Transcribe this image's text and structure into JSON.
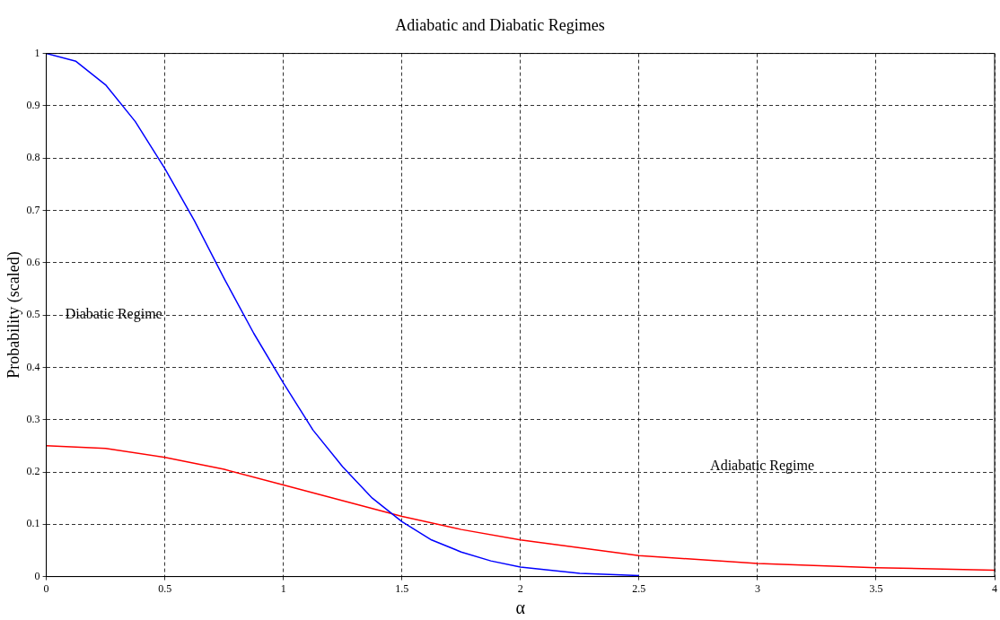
{
  "chart_data": {
    "type": "line",
    "title": "Adiabatic and Diabatic Regimes",
    "xlabel": "α",
    "ylabel": "Probability (scaled)",
    "xlim": [
      0,
      4
    ],
    "xticks": [
      0,
      0.5,
      1,
      1.5,
      2,
      2.5,
      3,
      3.5,
      4
    ],
    "ylim": [
      0,
      1
    ],
    "yticks": [
      0,
      0.1,
      0.2,
      0.3,
      0.4,
      0.5,
      0.6,
      0.7,
      0.8,
      0.9,
      1
    ],
    "grid": true,
    "legend": false,
    "marker": "none",
    "line_style": "solid",
    "series": [
      {
        "color": "#0000ff",
        "x": [
          0,
          0.125,
          0.25,
          0.375,
          0.5,
          0.625,
          0.75,
          0.875,
          1,
          1.125,
          1.25,
          1.375,
          1.5,
          1.625,
          1.75,
          1.875,
          2,
          2.25,
          2.5
        ],
        "values": [
          1,
          0.985,
          0.94,
          0.87,
          0.78,
          0.68,
          0.57,
          0.465,
          0.37,
          0.28,
          0.21,
          0.15,
          0.105,
          0.07,
          0.047,
          0.03,
          0.018,
          0.006,
          0.002
        ]
      },
      {
        "color": "#ff0000",
        "x": [
          0,
          0.25,
          0.5,
          0.75,
          1,
          1.25,
          1.5,
          1.75,
          2,
          2.5,
          3,
          3.5,
          4
        ],
        "values": [
          0.25,
          0.245,
          0.228,
          0.205,
          0.175,
          0.145,
          0.115,
          0.09,
          0.07,
          0.04,
          0.025,
          0.017,
          0.012
        ]
      }
    ],
    "annotations": [
      "Diabatic Regime",
      "Adiabatic Regime"
    ]
  }
}
